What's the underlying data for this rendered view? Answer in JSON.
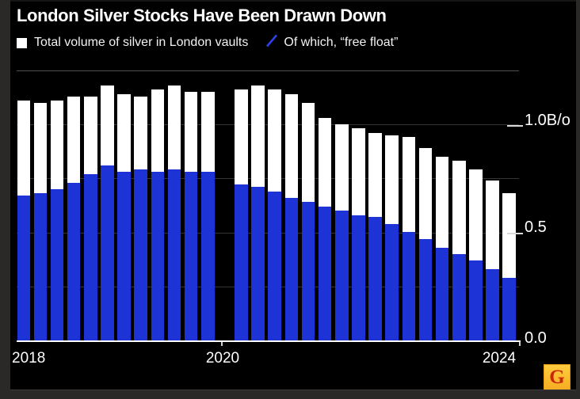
{
  "header": {
    "title": "London Silver Stocks Have Been Drawn Down"
  },
  "legend": {
    "items": [
      {
        "label": "Total volume of silver in London vaults",
        "swatch": "square-swatch",
        "color": "#ffffff"
      },
      {
        "label": "Of which, “free float”",
        "swatch": "slash-swatch",
        "color": "#2e42e6"
      }
    ]
  },
  "chart_data": {
    "type": "bar",
    "title": "London Silver Stocks Have Been Drawn Down",
    "series": [
      {
        "name": "Total volume of silver in London vaults",
        "color": "#ffffff",
        "values": [
          1.11,
          1.1,
          1.11,
          1.13,
          1.13,
          1.18,
          1.14,
          1.13,
          1.16,
          1.18,
          1.15,
          1.15,
          1.16,
          1.18,
          1.16,
          1.14,
          1.1,
          1.03,
          1.0,
          0.98,
          0.96,
          0.95,
          0.94,
          0.89,
          0.85,
          0.83,
          0.79,
          0.74,
          0.68
        ]
      },
      {
        "name": "Of which, “free float”",
        "color": "#1e33d6",
        "values": [
          0.67,
          0.68,
          0.7,
          0.73,
          0.77,
          0.81,
          0.78,
          0.79,
          0.78,
          0.79,
          0.78,
          0.78,
          0.72,
          0.71,
          0.69,
          0.66,
          0.64,
          0.62,
          0.6,
          0.58,
          0.57,
          0.54,
          0.5,
          0.47,
          0.43,
          0.4,
          0.37,
          0.33,
          0.29
        ]
      }
    ],
    "bar_style": "overlaid (free float drawn over total from baseline)",
    "gap_slot_index": 12,
    "x_axis": {
      "labels": [
        {
          "text": "2018",
          "align": "left-edge"
        },
        {
          "text": "2020",
          "align": "tick-centered"
        },
        {
          "text": "2024",
          "align": "right-end"
        }
      ]
    },
    "y_axis": {
      "tick_labels": [
        "1.0B/o",
        "0.5",
        "0.0"
      ],
      "tick_values": [
        1.0,
        0.5,
        0.0
      ],
      "gridline_values": [
        1.25,
        1.0,
        0.75,
        0.5,
        0.25
      ],
      "range": [
        0,
        1.25
      ]
    },
    "grid": "horizontal gridlines on black background",
    "legend_position": "top-left under title"
  },
  "logo": {
    "letter": "G"
  }
}
